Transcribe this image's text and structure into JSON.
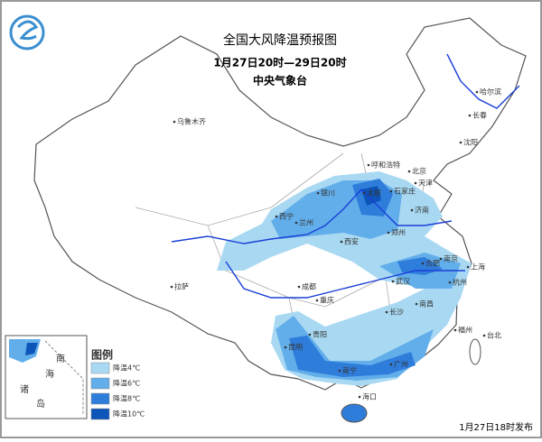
{
  "header": {
    "title": "全国大风降温预报图",
    "period": "1月27日20时—29日20时",
    "agency": "中央气象台"
  },
  "cities": [
    "乌鲁木齐",
    "哈尔滨",
    "长春",
    "沈阳",
    "呼和浩特",
    "北京",
    "天津",
    "石家庄",
    "太原",
    "银川",
    "济南",
    "西宁",
    "兰州",
    "郑州",
    "西安",
    "合肥",
    "南京",
    "上海",
    "武汉",
    "杭州",
    "成都",
    "拉萨",
    "重庆",
    "长沙",
    "南昌",
    "贵阳",
    "福州",
    "台北",
    "昆明",
    "南宁",
    "广州",
    "海口"
  ],
  "inset": {
    "labels": [
      "南",
      "海",
      "诸",
      "岛"
    ]
  },
  "legend": {
    "title": "图例",
    "items": [
      {
        "label": "降温4℃",
        "color": "#a9d9f2"
      },
      {
        "label": "降温6℃",
        "color": "#62aeea"
      },
      {
        "label": "降温8℃",
        "color": "#2f7ddb"
      },
      {
        "label": "降温10℃",
        "color": "#0d55b8"
      }
    ]
  },
  "footer": {
    "release": "1月27日18时发布"
  }
}
